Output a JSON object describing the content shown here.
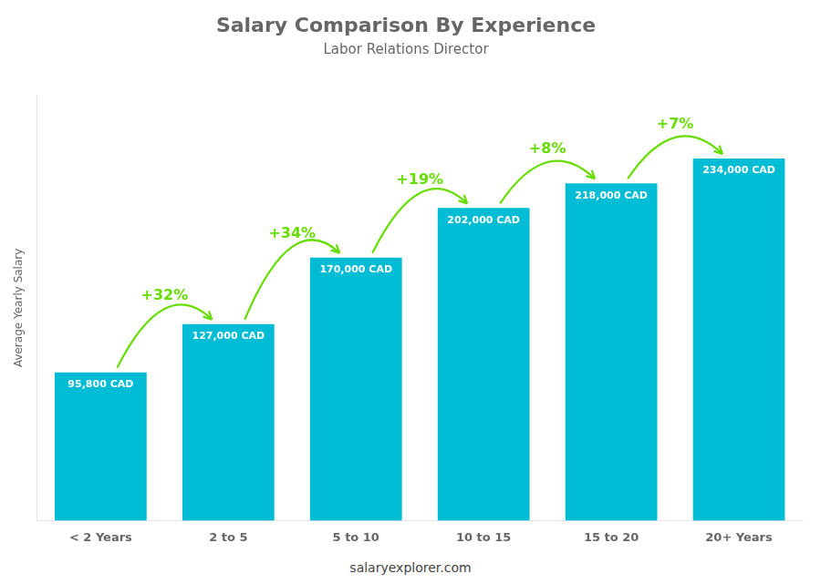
{
  "chart_data": {
    "type": "bar",
    "title": "Salary Comparison By Experience",
    "subtitle": "Labor Relations Director",
    "y_label": "Average Yearly Salary",
    "categories": [
      "< 2 Years",
      "2 to 5",
      "5 to 10",
      "10 to 15",
      "15 to 20",
      "20+ Years"
    ],
    "values": [
      95800,
      127000,
      170000,
      202000,
      218000,
      234000
    ],
    "value_labels": [
      "95,800 CAD",
      "127,000 CAD",
      "170,000 CAD",
      "202,000 CAD",
      "218,000 CAD",
      "234,000 CAD"
    ],
    "data_labels": true,
    "color": "#00bcd4",
    "ylim": [
      0,
      275000
    ],
    "grid": false,
    "tick_labels": "x",
    "annotations": [
      {
        "text": "+32%",
        "color": "#66dd00"
      },
      {
        "text": "+34%",
        "color": "#66dd00"
      },
      {
        "text": "+19%",
        "color": "#66dd00"
      },
      {
        "text": "+8%",
        "color": "#66dd00"
      },
      {
        "text": "+7%",
        "color": "#66dd00"
      }
    ],
    "footer": "salaryexplorer.com"
  }
}
